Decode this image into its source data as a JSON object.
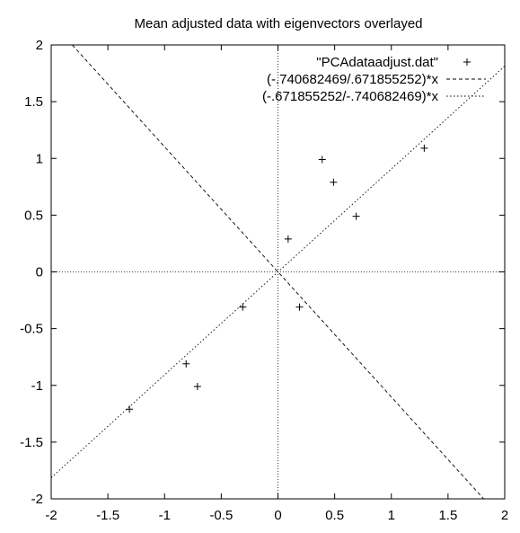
{
  "chart_data": {
    "type": "scatter",
    "title": "Mean adjusted data with eigenvectors overlayed",
    "xlabel": "",
    "ylabel": "",
    "xlim": [
      -2,
      2
    ],
    "ylim": [
      -2,
      2
    ],
    "xticks": [
      -2,
      -1.5,
      -1,
      -0.5,
      0,
      0.5,
      1,
      1.5,
      2
    ],
    "yticks": [
      -2,
      -1.5,
      -1,
      -0.5,
      0,
      0.5,
      1,
      1.5,
      2
    ],
    "xtick_labels": [
      "-2",
      "-1.5",
      "-1",
      "-0.5",
      "0",
      "0.5",
      "1",
      "1.5",
      "2"
    ],
    "ytick_labels": [
      "-2",
      "-1.5",
      "-1",
      "-0.5",
      "0",
      "0.5",
      "1",
      "1.5",
      "2"
    ],
    "grid": false,
    "zero_axes": true,
    "legend_position": "top-right",
    "series": [
      {
        "name": "\"PCAdataadjust.dat\"",
        "kind": "points",
        "marker": "plus",
        "x": [
          0.69,
          -1.31,
          0.39,
          0.09,
          1.29,
          0.49,
          0.19,
          -0.81,
          -0.31,
          -0.71
        ],
        "y": [
          0.49,
          -1.21,
          0.99,
          0.29,
          1.09,
          0.79,
          -0.31,
          -0.81,
          -0.31,
          -1.01
        ]
      },
      {
        "name": "(-.740682469/.671855252)*x",
        "kind": "line",
        "style": "dashed",
        "slope": -1.10244
      },
      {
        "name": "(-.671855252/-.740682469)*x",
        "kind": "line",
        "style": "dotted",
        "slope": 0.90708
      }
    ]
  }
}
